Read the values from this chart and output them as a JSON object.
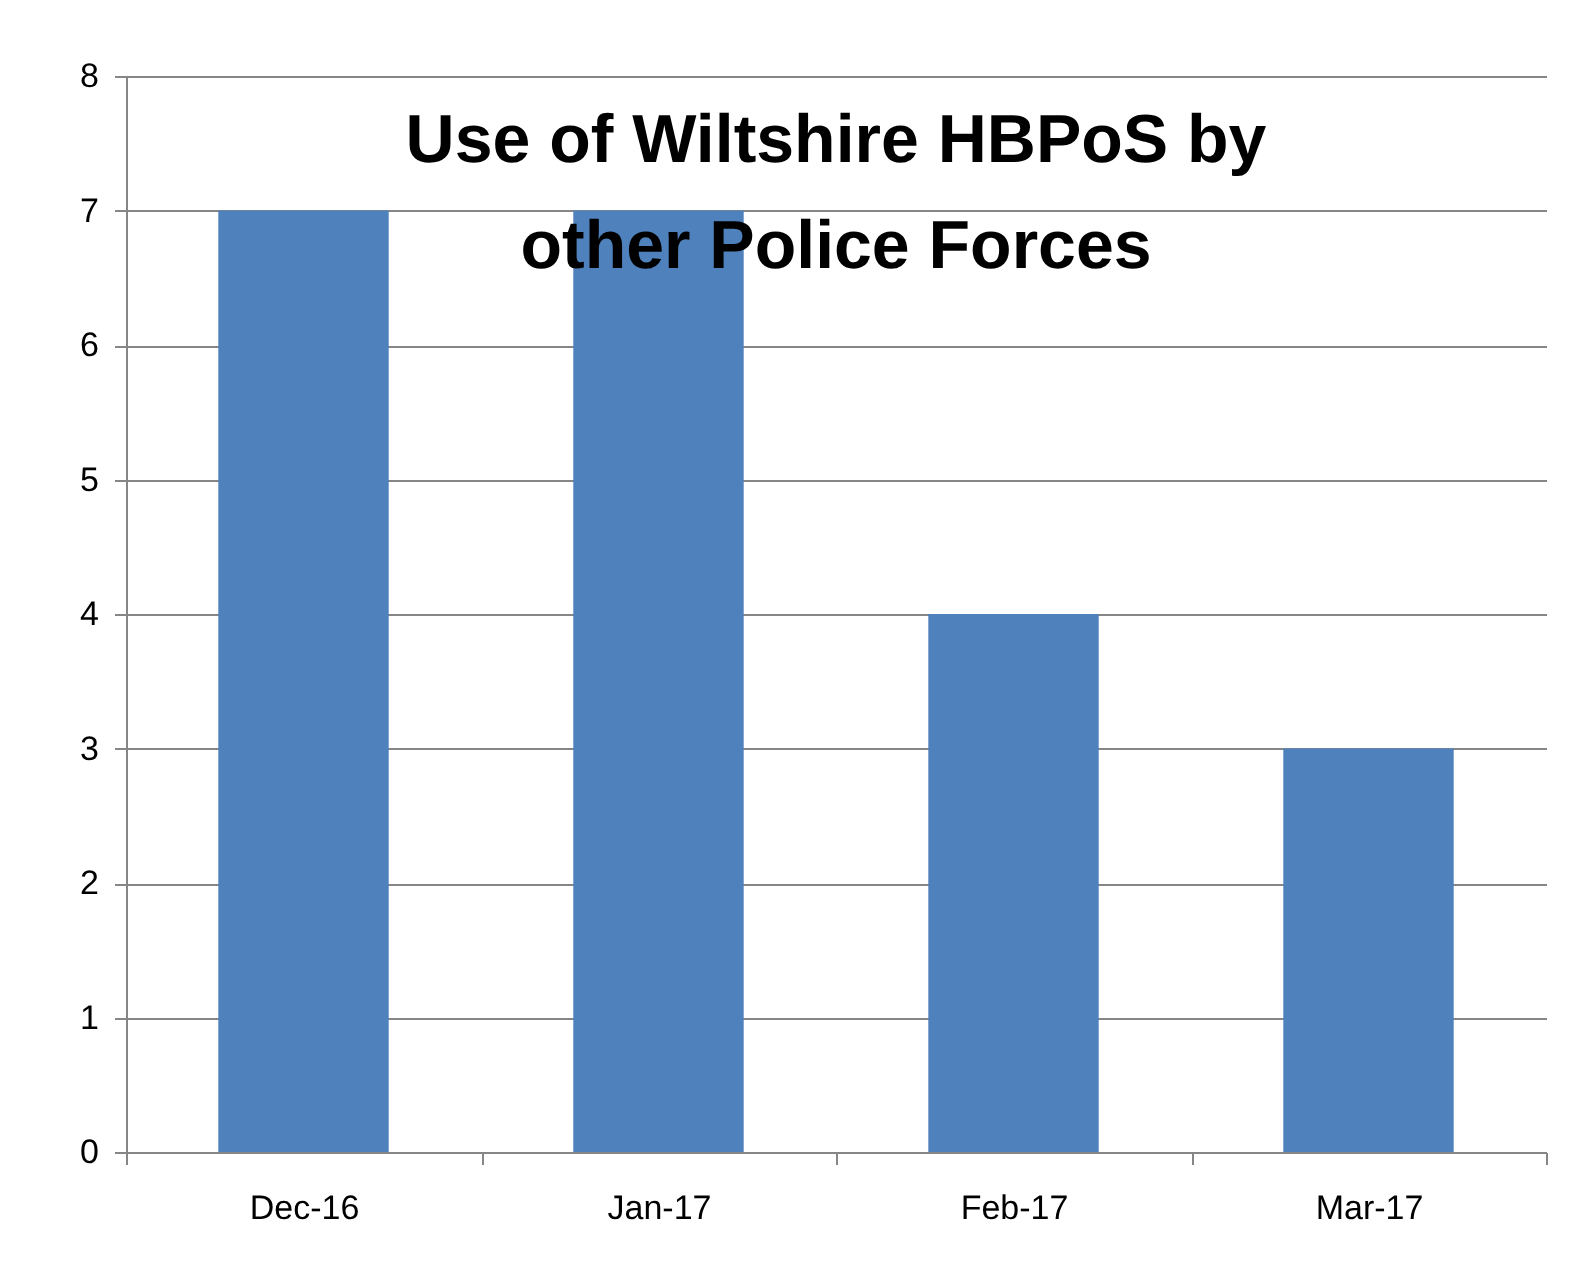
{
  "chart_data": {
    "type": "bar",
    "title": "Use of Wiltshire HBPoS by other Police Forces",
    "categories": [
      "Dec-16",
      "Jan-17",
      "Feb-17",
      "Mar-17"
    ],
    "values": [
      7,
      7,
      4,
      3
    ],
    "color": "#4f81bd",
    "ylim": [
      0,
      8
    ],
    "yticks": [
      0,
      1,
      2,
      3,
      4,
      5,
      6,
      7,
      8
    ],
    "grid": "y"
  }
}
